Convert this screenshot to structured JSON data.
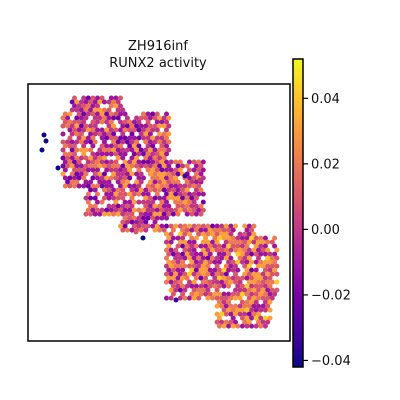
{
  "chart_data": {
    "type": "scatter",
    "title_lines": [
      "ZH916inf",
      "RUNX2 activity"
    ],
    "xlabel": "",
    "ylabel": "",
    "colorbar": {
      "colormap": "plasma",
      "vmin": -0.042,
      "vmax": 0.052,
      "ticks": [
        0.04,
        0.02,
        0.0,
        -0.02,
        -0.04
      ],
      "tick_labels": [
        "0.04",
        "0.02",
        "0.00",
        "−0.02",
        "−0.04"
      ]
    },
    "colors": [
      "#0d0887",
      "#46039f",
      "#7201a8",
      "#9c179e",
      "#bd3786",
      "#d8576b",
      "#ed7953",
      "#fb9f3a",
      "#fdca26",
      "#f0f921"
    ],
    "grid": false,
    "legend": "none",
    "clusters": [
      {
        "name": "upper-left",
        "x": [
          0.26,
          0.62
        ],
        "y": [
          0.04,
          0.58
        ]
      },
      {
        "name": "lower-right",
        "x": [
          0.54,
          0.95
        ],
        "y": [
          0.55,
          0.95
        ]
      }
    ]
  }
}
